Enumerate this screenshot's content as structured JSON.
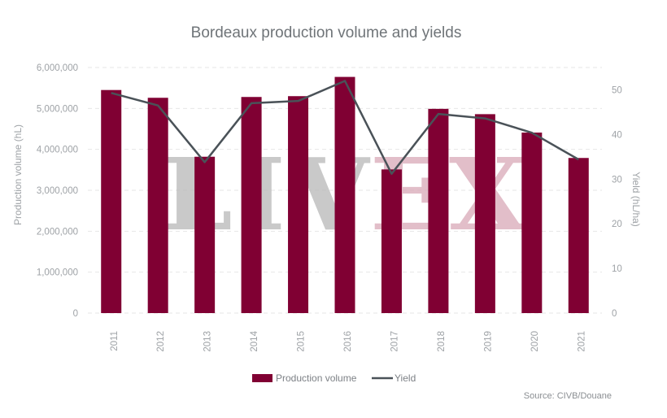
{
  "chart_data": {
    "type": "bar+line",
    "title": "Bordeaux production volume and yields",
    "ylabel": "Production volume (hL)",
    "y2label": "Yield (hL/ha)",
    "categories": [
      "2011",
      "2012",
      "2013",
      "2014",
      "2015",
      "2016",
      "2017",
      "2018",
      "2019",
      "2020",
      "2021"
    ],
    "series": [
      {
        "name": "Production volume",
        "type": "bar",
        "axis": "left",
        "color": "#800033",
        "values": [
          5450000,
          5260000,
          3820000,
          5280000,
          5300000,
          5770000,
          3510000,
          4990000,
          4860000,
          4410000,
          3790000
        ]
      },
      {
        "name": "Yield",
        "type": "line",
        "axis": "right",
        "color": "#4a5258",
        "values": [
          49.3,
          46.5,
          33.8,
          47.0,
          47.5,
          52.0,
          31.2,
          44.6,
          43.6,
          40.4,
          34.4
        ]
      }
    ],
    "ylim": [
      0,
      6000000
    ],
    "y2lim": [
      0,
      55
    ],
    "yticks": [
      "0",
      "1,000,000",
      "2,000,000",
      "3,000,000",
      "4,000,000",
      "5,000,000",
      "6,000,000"
    ],
    "y2ticks": [
      "0",
      "10",
      "20",
      "30",
      "40",
      "50"
    ],
    "grid": true,
    "legend": "bottom-center",
    "source": "Source: CIVB/Douane",
    "watermark": {
      "text_left": "LIV",
      "text_right": "EX",
      "color_left": "#b8b8b8",
      "color_right": "#d9a9b8"
    }
  }
}
